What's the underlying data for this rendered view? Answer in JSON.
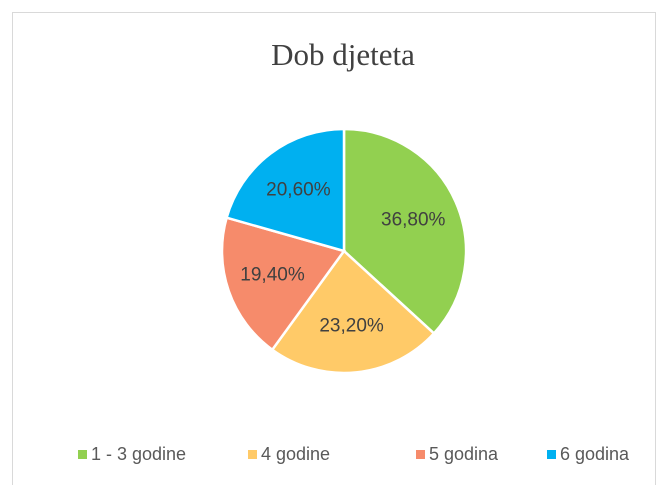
{
  "chart_data": {
    "type": "pie",
    "title": "Dob djeteta",
    "categories": [
      "1 - 3 godine",
      "4 godine",
      "5 godina",
      "6 godina"
    ],
    "values": [
      36.8,
      23.2,
      19.4,
      20.6
    ],
    "value_labels": [
      "36,80%",
      "23,20%",
      "19,40%",
      "20,60%"
    ],
    "colors": [
      "#92d050",
      "#ffca68",
      "#f68b6b",
      "#00b0f0"
    ],
    "legend": "bottom"
  }
}
